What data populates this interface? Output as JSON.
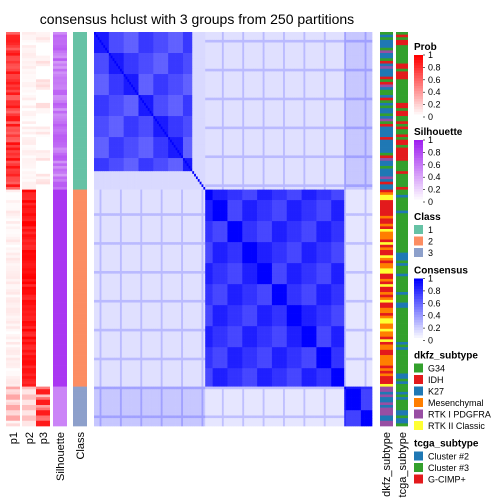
{
  "chart_data": {
    "type": "heatmap",
    "title": "consensus hclust with 3 groups from 250 partitions",
    "n_groups": 3,
    "row_groups": [
      {
        "class": "1",
        "n_rows": 60
      },
      {
        "class": "2",
        "n_rows": 75
      },
      {
        "class": "3",
        "n_rows": 15
      }
    ],
    "tracks_left": [
      {
        "label": "p1",
        "legend": "Prob"
      },
      {
        "label": "p2",
        "legend": "Prob"
      },
      {
        "label": "p3",
        "legend": "Prob"
      },
      {
        "label": "Silhouette",
        "legend": "Silhouette"
      },
      {
        "label": "Class",
        "legend": "Class"
      }
    ],
    "tracks_right": [
      {
        "label": "dkfz_subtype",
        "legend": "dkfz_subtype"
      },
      {
        "label": "tcga_subtype",
        "legend": "tcga_subtype"
      }
    ],
    "legends": [
      {
        "title": "Prob",
        "kind": "gradient",
        "ticks": [
          "1",
          "0.8",
          "0.6",
          "0.4",
          "0.2",
          "0"
        ],
        "low": "#ffffff",
        "high": "#ff0000"
      },
      {
        "title": "Silhouette",
        "kind": "gradient",
        "ticks": [
          "1",
          "0.8",
          "0.6",
          "0.4",
          "0.2",
          "0"
        ],
        "low": "#ffffff",
        "high": "#a020f0"
      },
      {
        "title": "Class",
        "kind": "discrete",
        "items": [
          {
            "label": "1",
            "color": "#66c2a5"
          },
          {
            "label": "2",
            "color": "#fc8d62"
          },
          {
            "label": "3",
            "color": "#8da0cb"
          }
        ]
      },
      {
        "title": "Consensus",
        "kind": "gradient",
        "ticks": [
          "1",
          "0.8",
          "0.6",
          "0.4",
          "0.2",
          "0"
        ],
        "low": "#ffffff",
        "high": "#0000ff"
      },
      {
        "title": "dkfz_subtype",
        "kind": "discrete",
        "items": [
          {
            "label": "G34",
            "color": "#33a02c"
          },
          {
            "label": "IDH",
            "color": "#e31a1c"
          },
          {
            "label": "K27",
            "color": "#1f78b4"
          },
          {
            "label": "Mesenchymal",
            "color": "#ff7f00"
          },
          {
            "label": "RTK I PDGFRA",
            "color": "#984ea3"
          },
          {
            "label": "RTK II Classic",
            "color": "#ffff33"
          }
        ]
      },
      {
        "title": "tcga_subtype",
        "kind": "discrete",
        "items": [
          {
            "label": "Cluster #2",
            "color": "#1f78b4"
          },
          {
            "label": "Cluster #3",
            "color": "#33a02c"
          },
          {
            "label": "G-CIMP+",
            "color": "#e31a1c"
          }
        ]
      }
    ],
    "consensus_between_groups": [
      [
        0.78,
        0.12,
        0.22
      ],
      [
        0.12,
        0.88,
        0.1
      ],
      [
        0.22,
        0.1,
        0.9
      ]
    ]
  }
}
